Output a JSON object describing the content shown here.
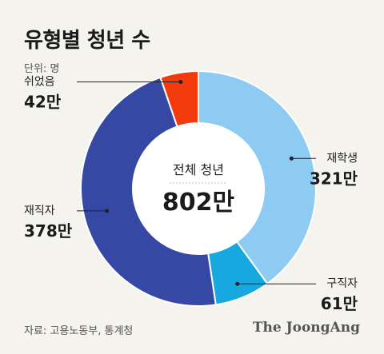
{
  "title": "유형별 청년 수",
  "unit": "단위: 명",
  "source": "자료: 고용노동부, 통계청",
  "brand": "The JoongAng",
  "center": {
    "label": "전체 청년",
    "value": "802만"
  },
  "colors": {
    "background": "#f4f3ee",
    "재학생": "#8ecbf2",
    "구직자": "#16a8df",
    "재직자": "#3548a4",
    "쉬었음": "#f23a0c"
  },
  "chart_data": {
    "type": "pie",
    "donut": true,
    "total": 802,
    "unit": "만",
    "slices": [
      {
        "name": "재학생",
        "value": 321,
        "label": "321만",
        "color": "#8ecbf2"
      },
      {
        "name": "구직자",
        "value": 61,
        "label": "61만",
        "color": "#16a8df"
      },
      {
        "name": "재직자",
        "value": 378,
        "label": "378만",
        "color": "#3548a4"
      },
      {
        "name": "쉬었음",
        "value": 42,
        "label": "42만",
        "color": "#f23a0c"
      }
    ]
  }
}
